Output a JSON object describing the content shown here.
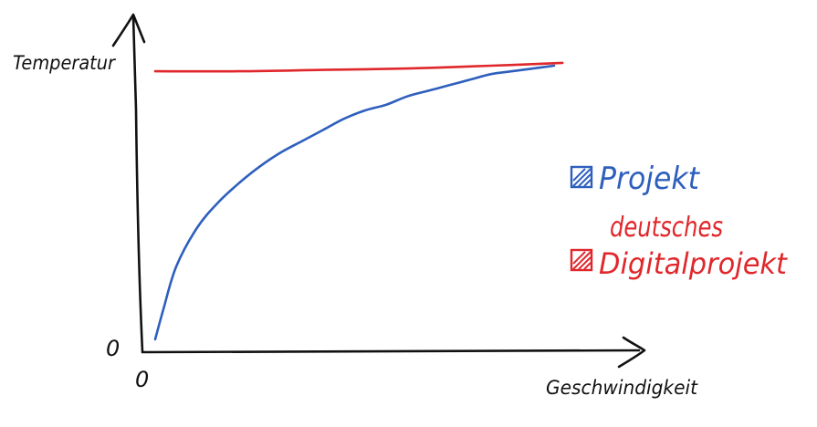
{
  "chart_data": {
    "type": "line",
    "title": "",
    "xlabel": "Geschwindigkeit",
    "ylabel": "Temperatur",
    "x_origin_label": "0",
    "y_origin_label": "0",
    "xlim": [
      0,
      100
    ],
    "ylim": [
      0,
      100
    ],
    "grid": false,
    "legend_position": "right",
    "series": [
      {
        "name": "Projekt",
        "color": "#2e5fbd",
        "x": [
          0,
          2,
          5,
          10,
          15,
          20,
          25,
          30,
          35,
          40,
          45,
          50,
          55,
          60,
          65,
          70,
          75,
          80,
          85,
          90,
          95
        ],
        "y": [
          2,
          13,
          28,
          42,
          51,
          58,
          64,
          69,
          73,
          77,
          81,
          84,
          86,
          89,
          91,
          93,
          95,
          97,
          98,
          99,
          100
        ]
      },
      {
        "name": "deutsches Digitalprojekt",
        "color": "#e0272b",
        "x": [
          0,
          20,
          40,
          60,
          80,
          97
        ],
        "y": [
          98,
          98,
          98.5,
          99,
          100,
          101
        ]
      }
    ],
    "legend": [
      {
        "label": "Projekt",
        "color": "#2e5fbd"
      },
      {
        "label_line1": "deutsches",
        "label_line2": "Digitalprojekt",
        "color": "#e0272b"
      }
    ]
  }
}
